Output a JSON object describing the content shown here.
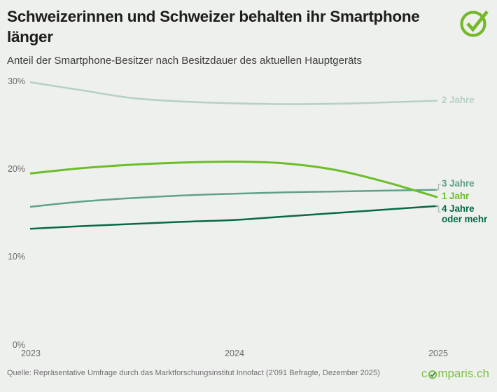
{
  "header": {
    "title": "Schweizerinnen und Schweizer behalten ihr Smartphone länger",
    "subtitle": "Anteil der Smartphone-Besitzer nach Besitzdauer des aktuellen Hauptgeräts"
  },
  "footer": {
    "source": "Quelle: Repräsentative Umfrage durch das Marktforschungsinstitut Innofact (2'091 Befragte, Dezember 2025)"
  },
  "brand": {
    "logo_prefix": "c",
    "logo_suffix": "mparis.ch",
    "logo_color": "#7dc142",
    "check_color": "#76b82a"
  },
  "colors": {
    "background": "#eef0ee",
    "title_text": "#1d1d1b",
    "axis_label": "#6a6a6a",
    "source_text": "#6f6f6f",
    "bracket": "#b6bdb6"
  },
  "chart_data": {
    "type": "line",
    "title": "Schweizerinnen und Schweizer behalten ihr Smartphone länger",
    "subtitle": "Anteil der Smartphone-Besitzer nach Besitzdauer des aktuellen Hauptgeräts",
    "xlabel": "",
    "ylabel": "",
    "unit": "percent",
    "grid": false,
    "legend_position": "line-end-labels-right",
    "xlim": [
      2023,
      2025
    ],
    "ylim": [
      0,
      30
    ],
    "x_ticks": [
      {
        "label": "2023",
        "value": 2023
      },
      {
        "label": "2024",
        "value": 2024
      },
      {
        "label": "2025",
        "value": 2025
      }
    ],
    "y_ticks": [
      {
        "label": "30%",
        "value": 30
      },
      {
        "label": "20%",
        "value": 20
      },
      {
        "label": "10%",
        "value": 10
      },
      {
        "label": "0%",
        "value": 0
      }
    ],
    "x": [
      2023,
      2023.25,
      2023.5,
      2023.75,
      2024,
      2024.25,
      2024.5,
      2024.75,
      2025
    ],
    "series": [
      {
        "name": "2 Jahre",
        "color": "#b7d0c5",
        "stroke_width": 2.6,
        "values": [
          29.9,
          29.0,
          28.1,
          27.7,
          27.5,
          27.4,
          27.45,
          27.6,
          27.8
        ]
      },
      {
        "name": "3 Jahre",
        "color": "#5fa28c",
        "stroke_width": 2.5,
        "values": [
          15.7,
          16.3,
          16.7,
          17.0,
          17.2,
          17.35,
          17.45,
          17.55,
          17.65
        ]
      },
      {
        "name": "4 Jahre oder mehr",
        "color": "#066a45",
        "stroke_width": 2.5,
        "values": [
          13.2,
          13.5,
          13.75,
          14.0,
          14.2,
          14.6,
          15.0,
          15.4,
          15.8
        ]
      },
      {
        "name": "1 Jahr",
        "color": "#6cbd27",
        "stroke_width": 3,
        "values": [
          19.5,
          20.1,
          20.5,
          20.75,
          20.85,
          20.65,
          19.9,
          18.5,
          16.8
        ]
      }
    ]
  }
}
